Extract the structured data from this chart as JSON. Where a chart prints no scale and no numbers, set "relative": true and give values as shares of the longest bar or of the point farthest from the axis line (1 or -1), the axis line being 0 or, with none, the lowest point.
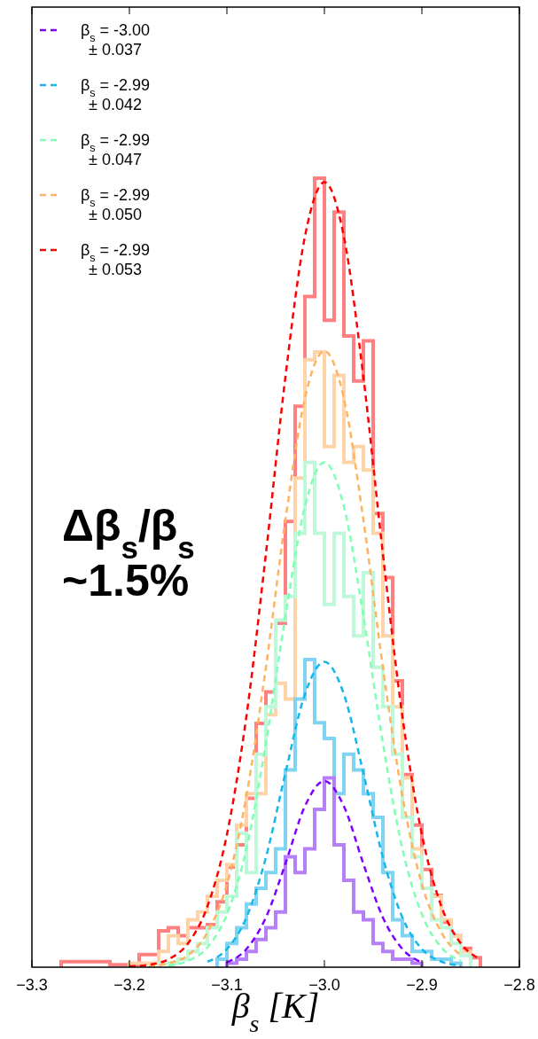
{
  "chart_data": {
    "type": "line",
    "relative": true,
    "xlabel": "β$_{s}$  [K]",
    "xlim": [
      -3.3,
      -2.8
    ],
    "xticks": [
      {
        "value": -3.3,
        "label": "−3.3"
      },
      {
        "value": -3.2,
        "label": "−3.2"
      },
      {
        "value": -3.1,
        "label": "−3.1"
      },
      {
        "value": -3.0,
        "label": "−3.0"
      },
      {
        "value": -2.9,
        "label": "−2.9"
      },
      {
        "value": -2.8,
        "label": "−2.8"
      }
    ],
    "legend": "top left",
    "line_style": "dashed",
    "annotations": [
      "Δβ$_{s}$/β$_{s}$\n~1.5%"
    ],
    "series": [
      {
        "type": "histogram",
        "color": "#ff8080",
        "bins": [
          -3.27,
          -3.26,
          -3.25,
          -3.24,
          -3.23,
          -3.22,
          -3.21,
          -3.2,
          -3.19,
          -3.18,
          -3.17,
          -3.16,
          -3.15,
          -3.14,
          -3.13,
          -3.12,
          -3.11,
          -3.1,
          -3.09,
          -3.08,
          -3.07,
          -3.06,
          -3.05,
          -3.04,
          -3.03,
          -3.02,
          -3.01,
          -3.0,
          -2.99,
          -2.98,
          -2.97,
          -2.96,
          -2.95,
          -2.94,
          -2.93,
          -2.92,
          -2.91,
          -2.9,
          -2.89,
          -2.88,
          -2.87,
          -2.86,
          -2.85,
          -2.84
        ],
        "values": [
          0.007,
          0.007,
          0.007,
          0.007,
          0.007,
          0.003,
          0.003,
          0.003,
          0.016,
          0.016,
          0.046,
          0.05,
          0.04,
          0.05,
          0.05,
          0.054,
          0.083,
          0.127,
          0.155,
          0.214,
          0.309,
          0.349,
          0.436,
          0.565,
          0.711,
          0.85,
          1.0,
          0.82,
          0.957,
          0.8,
          0.743,
          0.794,
          0.575,
          0.494,
          0.363,
          0.244,
          0.18,
          0.124,
          0.091,
          0.057,
          0.04,
          0.024,
          0.012
        ]
      },
      {
        "type": "histogram",
        "color": "#ffd3a8",
        "bins": [
          -3.2,
          -3.19,
          -3.18,
          -3.17,
          -3.16,
          -3.15,
          -3.14,
          -3.13,
          -3.12,
          -3.11,
          -3.1,
          -3.09,
          -3.08,
          -3.07,
          -3.06,
          -3.05,
          -3.04,
          -3.03,
          -3.02,
          -3.01,
          -3.0,
          -2.99,
          -2.98,
          -2.97,
          -2.96,
          -2.95,
          -2.94,
          -2.93,
          -2.92,
          -2.91,
          -2.9,
          -2.89,
          -2.88,
          -2.87,
          -2.86,
          -2.85
        ],
        "values": [
          0.005,
          0.005,
          0.005,
          0.02,
          0.04,
          0.03,
          0.06,
          0.07,
          0.09,
          0.11,
          0.13,
          0.18,
          0.22,
          0.22,
          0.32,
          0.36,
          0.34,
          0.62,
          0.77,
          0.78,
          0.66,
          0.75,
          0.64,
          0.66,
          0.63,
          0.55,
          0.42,
          0.33,
          0.24,
          0.15,
          0.1,
          0.09,
          0.06,
          0.04,
          0.02
        ]
      },
      {
        "type": "histogram",
        "color": "#bff8d8",
        "bins": [
          -3.17,
          -3.16,
          -3.15,
          -3.14,
          -3.13,
          -3.12,
          -3.11,
          -3.1,
          -3.09,
          -3.08,
          -3.07,
          -3.06,
          -3.05,
          -3.04,
          -3.03,
          -3.02,
          -3.01,
          -3.0,
          -2.99,
          -2.98,
          -2.97,
          -2.96,
          -2.95,
          -2.94,
          -2.93,
          -2.92,
          -2.91,
          -2.9,
          -2.89,
          -2.88,
          -2.87,
          -2.86,
          -2.85
        ],
        "values": [
          0.005,
          0.005,
          0.01,
          0.02,
          0.03,
          0.05,
          0.07,
          0.09,
          0.17,
          0.12,
          0.27,
          0.33,
          0.44,
          0.47,
          0.55,
          0.64,
          0.55,
          0.46,
          0.55,
          0.47,
          0.42,
          0.5,
          0.38,
          0.33,
          0.27,
          0.19,
          0.14,
          0.1,
          0.06,
          0.05,
          0.03,
          0.015
        ]
      },
      {
        "type": "histogram",
        "color": "#80d4f2",
        "bins": [
          -3.11,
          -3.1,
          -3.09,
          -3.08,
          -3.07,
          -3.06,
          -3.05,
          -3.04,
          -3.03,
          -3.02,
          -3.01,
          -3.0,
          -2.99,
          -2.98,
          -2.97,
          -2.96,
          -2.95,
          -2.94,
          -2.93,
          -2.92,
          -2.91,
          -2.9,
          -2.89,
          -2.88,
          -2.87,
          -2.86
        ],
        "values": [
          0.01,
          0.03,
          0.05,
          0.08,
          0.1,
          0.12,
          0.15,
          0.25,
          0.34,
          0.39,
          0.31,
          0.29,
          0.22,
          0.27,
          0.25,
          0.22,
          0.19,
          0.12,
          0.06,
          0.04,
          0.02,
          0.02,
          0.01,
          0.01,
          0.005
        ]
      },
      {
        "type": "histogram",
        "color": "#b580f6",
        "bins": [
          -3.1,
          -3.09,
          -3.08,
          -3.07,
          -3.06,
          -3.05,
          -3.04,
          -3.03,
          -3.02,
          -3.01,
          -3.0,
          -2.99,
          -2.98,
          -2.97,
          -2.96,
          -2.95,
          -2.94,
          -2.93,
          -2.92,
          -2.91,
          -2.9
        ],
        "values": [
          0.005,
          0.01,
          0.02,
          0.035,
          0.05,
          0.07,
          0.14,
          0.12,
          0.15,
          0.2,
          0.24,
          0.155,
          0.11,
          0.07,
          0.06,
          0.03,
          0.02,
          0.01,
          0.01,
          0.005
        ]
      },
      {
        "name": "β$_{s}$ = -3.00\n± 0.037",
        "color": "#8000ff",
        "x": [
          -3.1,
          -3.08,
          -3.06,
          -3.04,
          -3.02,
          -3.0,
          -2.98,
          -2.96,
          -2.94,
          -2.92,
          -2.9
        ],
        "values": [
          0.006,
          0.023,
          0.063,
          0.131,
          0.204,
          0.236,
          0.204,
          0.131,
          0.063,
          0.023,
          0.006
        ]
      },
      {
        "name": "β$_{s}$ = -2.99\n± 0.042",
        "color": "#12b8ea",
        "x": [
          -3.12,
          -3.1,
          -3.08,
          -3.06,
          -3.04,
          -3.02,
          -3.0,
          -2.98,
          -2.96,
          -2.94,
          -2.92,
          -2.9,
          -2.88,
          -2.86
        ],
        "values": [
          0.007,
          0.023,
          0.063,
          0.139,
          0.246,
          0.346,
          0.387,
          0.346,
          0.246,
          0.139,
          0.063,
          0.023,
          0.007,
          0.002
        ]
      },
      {
        "name": "β$_{s}$ = -2.99\n± 0.047",
        "color": "#80ffb4",
        "x": [
          -3.16,
          -3.14,
          -3.12,
          -3.1,
          -3.08,
          -3.06,
          -3.04,
          -3.02,
          -3.0,
          -2.98,
          -2.96,
          -2.94,
          -2.92,
          -2.9,
          -2.88,
          -2.86
        ],
        "values": [
          0.002,
          0.008,
          0.025,
          0.067,
          0.15,
          0.284,
          0.445,
          0.584,
          0.64,
          0.584,
          0.445,
          0.284,
          0.15,
          0.067,
          0.025,
          0.008
        ]
      },
      {
        "name": "β$_{s}$ = -2.99\n± 0.050",
        "color": "#ffb360",
        "x": [
          -3.18,
          -3.16,
          -3.14,
          -3.12,
          -3.1,
          -3.08,
          -3.06,
          -3.04,
          -3.02,
          -3.0,
          -2.98,
          -2.96,
          -2.94,
          -2.92,
          -2.9,
          -2.88,
          -2.86
        ],
        "values": [
          0.001,
          0.005,
          0.015,
          0.044,
          0.105,
          0.217,
          0.38,
          0.567,
          0.721,
          0.781,
          0.721,
          0.567,
          0.38,
          0.217,
          0.105,
          0.044,
          0.015
        ]
      },
      {
        "name": "β$_{s}$ = -2.99\n± 0.053",
        "color": "#ff0000",
        "x": [
          -3.2,
          -3.18,
          -3.16,
          -3.14,
          -3.12,
          -3.1,
          -3.08,
          -3.06,
          -3.04,
          -3.02,
          -3.0,
          -2.98,
          -2.96,
          -2.94,
          -2.92,
          -2.9,
          -2.88,
          -2.86,
          -2.84
        ],
        "values": [
          0.001,
          0.003,
          0.01,
          0.03,
          0.077,
          0.168,
          0.318,
          0.524,
          0.748,
          0.926,
          0.995,
          0.926,
          0.748,
          0.524,
          0.318,
          0.168,
          0.077,
          0.03,
          0.01
        ]
      }
    ]
  }
}
